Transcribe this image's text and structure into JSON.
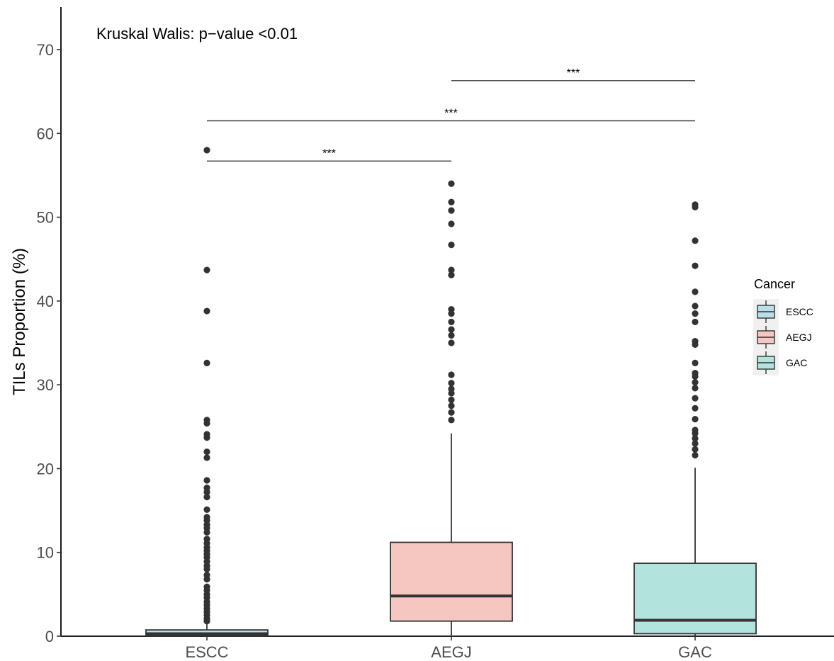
{
  "chart_data": {
    "type": "box",
    "ylabel": "TILs Proportion (%)",
    "xlabel": "",
    "annotation": "Kruskal Walis: p−value <0.01",
    "ylim": [
      0,
      75
    ],
    "yticks": [
      0,
      10,
      20,
      30,
      40,
      50,
      60,
      70
    ],
    "categories": [
      "ESCC",
      "AEGJ",
      "GAC"
    ],
    "legend": {
      "title": "Cancer",
      "position": "right",
      "entries": [
        "ESCC",
        "AEGJ",
        "GAC"
      ]
    },
    "grid": false,
    "series": [
      {
        "name": "ESCC",
        "color": "#b9e0e8",
        "min": 0,
        "q1": 0.05,
        "median": 0.3,
        "q3": 0.75,
        "whisker_high": 1.5,
        "outliers": [
          58.0,
          43.7,
          38.8,
          32.6,
          25.8,
          25.4,
          24.1,
          23.7,
          22.0,
          21.3,
          18.6,
          17.7,
          17.2,
          16.6,
          15.1,
          14.2,
          13.8,
          13.3,
          12.9,
          12.4,
          11.6,
          11.1,
          10.6,
          10.2,
          9.8,
          9.4,
          8.9,
          8.4,
          8.0,
          7.3,
          6.8,
          5.9,
          5.5,
          5.0,
          4.6,
          4.1,
          3.7,
          3.3,
          2.9,
          2.5,
          2.1,
          1.8
        ]
      },
      {
        "name": "AEGJ",
        "color": "#f6c7c0",
        "min": 0,
        "q1": 1.8,
        "median": 4.8,
        "q3": 11.2,
        "whisker_high": 24.2,
        "outliers": [
          54.0,
          51.8,
          50.8,
          49.2,
          46.7,
          43.7,
          43.1,
          39.0,
          38.5,
          37.5,
          36.6,
          35.9,
          35.0,
          31.2,
          30.2,
          29.5,
          29.0,
          28.2,
          27.5,
          26.7,
          25.8
        ]
      },
      {
        "name": "GAC",
        "color": "#b3e3dd",
        "min": 0,
        "q1": 0.3,
        "median": 1.9,
        "q3": 8.7,
        "whisker_high": 20.1,
        "outliers": [
          51.5,
          51.2,
          47.2,
          44.2,
          41.1,
          39.4,
          38.5,
          37.5,
          35.2,
          34.8,
          32.6,
          31.4,
          31.0,
          30.3,
          29.6,
          28.4,
          27.2,
          25.9,
          24.6,
          24.2,
          23.6,
          23.0,
          22.3,
          21.6
        ]
      }
    ],
    "comparisons": [
      {
        "from": "ESCC",
        "to": "AEGJ",
        "y": 56.7,
        "label": "***"
      },
      {
        "from": "ESCC",
        "to": "GAC",
        "y": 61.5,
        "label": "***"
      },
      {
        "from": "AEGJ",
        "to": "GAC",
        "y": 66.3,
        "label": "***"
      }
    ]
  }
}
